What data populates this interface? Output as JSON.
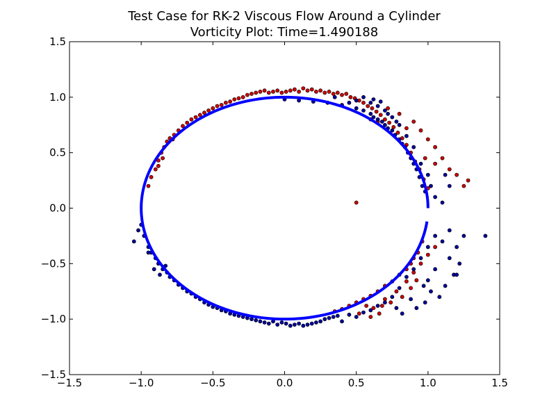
{
  "chart_data": {
    "type": "scatter",
    "title": "Test Case for RK-2 Viscous Flow Around a Cylinder",
    "subtitle": "Vorticity Plot: Time=1.490188",
    "xlabel": "",
    "ylabel": "",
    "xlim": [
      -1.5,
      1.5
    ],
    "ylim": [
      -1.5,
      1.5
    ],
    "xticks": [
      "−1.5",
      "−1.0",
      "−0.5",
      "0.0",
      "0.5",
      "1.0",
      "1.5"
    ],
    "yticks": [
      "−1.5",
      "−1.0",
      "−0.5",
      "0.0",
      "0.5",
      "1.0",
      "1.5"
    ],
    "grid": false,
    "colors": {
      "boundary": "#0000ff",
      "red_point_fill": "#cc0000",
      "blue_point_fill": "#000099",
      "point_edge": "#000000"
    },
    "boundary": {
      "shape": "circle",
      "center": [
        0,
        0
      ],
      "radius": 1.0,
      "gap_between_y": [
        -0.12,
        0.0
      ]
    },
    "series": [
      {
        "color": "red",
        "points": [
          [
            -0.95,
            0.2
          ],
          [
            -0.93,
            0.28
          ],
          [
            -0.9,
            0.35
          ],
          [
            -0.88,
            0.43
          ],
          [
            -0.86,
            0.5
          ],
          [
            -0.84,
            0.55
          ],
          [
            -0.82,
            0.6
          ],
          [
            -0.8,
            0.63
          ],
          [
            -0.77,
            0.66
          ],
          [
            -0.74,
            0.7
          ],
          [
            -0.71,
            0.74
          ],
          [
            -0.68,
            0.77
          ],
          [
            -0.65,
            0.8
          ],
          [
            -0.62,
            0.82
          ],
          [
            -0.59,
            0.84
          ],
          [
            -0.56,
            0.86
          ],
          [
            -0.53,
            0.88
          ],
          [
            -0.5,
            0.9
          ],
          [
            -0.47,
            0.92
          ],
          [
            -0.44,
            0.93
          ],
          [
            -0.41,
            0.95
          ],
          [
            -0.38,
            0.96
          ],
          [
            -0.35,
            0.98
          ],
          [
            -0.32,
            0.99
          ],
          [
            -0.29,
            1.0
          ],
          [
            -0.26,
            1.02
          ],
          [
            -0.23,
            1.03
          ],
          [
            -0.2,
            1.04
          ],
          [
            -0.17,
            1.05
          ],
          [
            -0.14,
            1.06
          ],
          [
            -0.11,
            1.04
          ],
          [
            -0.08,
            1.05
          ],
          [
            -0.05,
            1.06
          ],
          [
            -0.02,
            1.04
          ],
          [
            0.01,
            1.05
          ],
          [
            0.04,
            1.06
          ],
          [
            0.07,
            1.07
          ],
          [
            0.1,
            1.05
          ],
          [
            0.13,
            1.08
          ],
          [
            0.16,
            1.06
          ],
          [
            0.19,
            1.07
          ],
          [
            0.22,
            1.05
          ],
          [
            0.25,
            1.06
          ],
          [
            0.28,
            1.04
          ],
          [
            0.31,
            1.05
          ],
          [
            0.34,
            1.03
          ],
          [
            0.37,
            1.04
          ],
          [
            0.4,
            1.02
          ],
          [
            0.43,
            1.03
          ],
          [
            0.46,
            1.0
          ],
          [
            0.49,
            0.99
          ],
          [
            0.52,
            0.97
          ],
          [
            0.55,
            0.95
          ],
          [
            0.58,
            0.92
          ],
          [
            0.61,
            0.9
          ],
          [
            0.64,
            0.87
          ],
          [
            0.67,
            0.84
          ],
          [
            0.7,
            0.8
          ],
          [
            0.73,
            0.77
          ],
          [
            0.76,
            0.73
          ],
          [
            0.79,
            0.68
          ],
          [
            0.82,
            0.63
          ],
          [
            0.85,
            0.57
          ],
          [
            0.88,
            0.5
          ],
          [
            0.91,
            0.42
          ],
          [
            0.94,
            0.35
          ],
          [
            0.97,
            0.26
          ],
          [
            1.0,
            0.18
          ],
          [
            1.05,
            0.55
          ],
          [
            1.1,
            0.45
          ],
          [
            1.15,
            0.35
          ],
          [
            1.2,
            0.3
          ],
          [
            1.25,
            0.2
          ],
          [
            1.28,
            0.25
          ],
          [
            0.9,
            0.78
          ],
          [
            0.95,
            0.7
          ],
          [
            1.0,
            0.62
          ],
          [
            1.05,
            0.4
          ],
          [
            0.6,
            0.8
          ],
          [
            0.65,
            0.78
          ],
          [
            0.5,
            0.05
          ],
          [
            -0.85,
            0.45
          ],
          [
            -0.88,
            0.38
          ],
          [
            -0.78,
            0.62
          ],
          [
            0.72,
            0.9
          ],
          [
            0.8,
            0.85
          ],
          [
            0.85,
            0.72
          ],
          [
            0.98,
            0.45
          ],
          [
            0.5,
            -0.85
          ],
          [
            0.55,
            -0.82
          ],
          [
            0.6,
            -0.79
          ],
          [
            0.65,
            -0.75
          ],
          [
            0.7,
            -0.7
          ],
          [
            0.75,
            -0.66
          ],
          [
            0.8,
            -0.6
          ],
          [
            0.85,
            -0.55
          ],
          [
            0.88,
            -0.5
          ],
          [
            0.9,
            -0.45
          ],
          [
            0.93,
            -0.4
          ],
          [
            0.96,
            -0.3
          ],
          [
            0.45,
            -0.88
          ],
          [
            0.4,
            -0.91
          ],
          [
            0.35,
            -0.93
          ],
          [
            0.62,
            -0.9
          ],
          [
            0.7,
            -0.82
          ],
          [
            0.78,
            -0.75
          ],
          [
            0.85,
            -0.66
          ],
          [
            0.9,
            -0.58
          ],
          [
            0.95,
            -0.5
          ],
          [
            1.0,
            -0.42
          ],
          [
            1.05,
            -0.35
          ],
          [
            0.6,
            -0.98
          ],
          [
            0.68,
            -0.88
          ],
          [
            0.74,
            -0.85
          ],
          [
            0.82,
            -0.8
          ],
          [
            0.88,
            -0.72
          ],
          [
            0.52,
            -0.95
          ],
          [
            0.57,
            -0.88
          ],
          [
            0.66,
            -0.95
          ],
          [
            0.92,
            -0.65
          ]
        ]
      },
      {
        "color": "blue",
        "points": [
          [
            -1.05,
            -0.3
          ],
          [
            -1.0,
            -0.15
          ],
          [
            -0.98,
            -0.25
          ],
          [
            -0.95,
            -0.35
          ],
          [
            -0.93,
            -0.4
          ],
          [
            -0.9,
            -0.45
          ],
          [
            -0.88,
            -0.5
          ],
          [
            -0.85,
            -0.55
          ],
          [
            -0.82,
            -0.58
          ],
          [
            -0.8,
            -0.62
          ],
          [
            -0.77,
            -0.65
          ],
          [
            -0.74,
            -0.69
          ],
          [
            -0.71,
            -0.72
          ],
          [
            -0.68,
            -0.75
          ],
          [
            -0.65,
            -0.77
          ],
          [
            -0.62,
            -0.8
          ],
          [
            -0.59,
            -0.82
          ],
          [
            -0.56,
            -0.85
          ],
          [
            -0.53,
            -0.87
          ],
          [
            -0.5,
            -0.89
          ],
          [
            -0.47,
            -0.9
          ],
          [
            -0.44,
            -0.92
          ],
          [
            -0.41,
            -0.93
          ],
          [
            -0.38,
            -0.95
          ],
          [
            -0.35,
            -0.96
          ],
          [
            -0.32,
            -0.97
          ],
          [
            -0.29,
            -0.98
          ],
          [
            -0.26,
            -0.99
          ],
          [
            -0.23,
            -1.0
          ],
          [
            -0.2,
            -1.01
          ],
          [
            -0.17,
            -1.02
          ],
          [
            -0.14,
            -1.03
          ],
          [
            -0.11,
            -1.04
          ],
          [
            -0.08,
            -1.02
          ],
          [
            -0.05,
            -1.05
          ],
          [
            -0.02,
            -1.03
          ],
          [
            0.01,
            -1.04
          ],
          [
            0.04,
            -1.06
          ],
          [
            0.07,
            -1.05
          ],
          [
            0.1,
            -1.04
          ],
          [
            0.13,
            -1.06
          ],
          [
            0.16,
            -1.05
          ],
          [
            0.19,
            -1.04
          ],
          [
            0.22,
            -1.03
          ],
          [
            0.25,
            -1.02
          ],
          [
            0.28,
            -1.0
          ],
          [
            0.31,
            -0.99
          ],
          [
            0.34,
            -0.98
          ],
          [
            0.37,
            -0.97
          ],
          [
            0.4,
            -1.02
          ],
          [
            0.45,
            -0.96
          ],
          [
            0.5,
            -0.98
          ],
          [
            0.55,
            -0.94
          ],
          [
            0.6,
            -0.92
          ],
          [
            0.65,
            -0.88
          ],
          [
            0.7,
            -0.85
          ],
          [
            0.75,
            -0.8
          ],
          [
            0.8,
            -0.72
          ],
          [
            0.85,
            -0.62
          ],
          [
            0.9,
            -0.55
          ],
          [
            0.95,
            -0.45
          ],
          [
            1.0,
            -0.35
          ],
          [
            1.05,
            -0.25
          ],
          [
            1.1,
            -0.3
          ],
          [
            1.15,
            -0.2
          ],
          [
            1.2,
            -0.35
          ],
          [
            1.25,
            -0.25
          ],
          [
            1.4,
            -0.25
          ],
          [
            1.22,
            -0.5
          ],
          [
            1.18,
            -0.6
          ],
          [
            1.12,
            -0.7
          ],
          [
            1.08,
            -0.8
          ],
          [
            1.02,
            -0.75
          ],
          [
            0.98,
            -0.85
          ],
          [
            0.92,
            -0.9
          ],
          [
            0.88,
            -0.82
          ],
          [
            0.82,
            -0.95
          ],
          [
            0.78,
            -0.9
          ],
          [
            1.2,
            -0.6
          ],
          [
            1.15,
            -0.45
          ],
          [
            1.05,
            -0.55
          ],
          [
            1.0,
            -0.65
          ],
          [
            0.97,
            -0.7
          ],
          [
            -0.95,
            -0.4
          ],
          [
            -1.02,
            -0.2
          ],
          [
            -0.87,
            -0.6
          ],
          [
            -0.83,
            -0.52
          ],
          [
            -0.91,
            -0.55
          ],
          [
            0.0,
            0.98
          ],
          [
            0.1,
            0.97
          ],
          [
            0.2,
            0.96
          ],
          [
            0.3,
            0.95
          ],
          [
            0.4,
            0.93
          ],
          [
            0.5,
            0.9
          ],
          [
            0.55,
            0.88
          ],
          [
            0.6,
            0.85
          ],
          [
            0.62,
            0.82
          ],
          [
            0.65,
            0.8
          ],
          [
            0.68,
            0.78
          ],
          [
            0.7,
            0.75
          ],
          [
            0.72,
            0.72
          ],
          [
            0.75,
            0.7
          ],
          [
            0.77,
            0.66
          ],
          [
            0.8,
            0.62
          ],
          [
            0.82,
            0.58
          ],
          [
            0.84,
            0.55
          ],
          [
            0.86,
            0.5
          ],
          [
            0.88,
            0.45
          ],
          [
            0.9,
            0.4
          ],
          [
            0.92,
            0.35
          ],
          [
            0.94,
            0.28
          ],
          [
            0.96,
            0.2
          ],
          [
            0.98,
            0.15
          ],
          [
            0.6,
            0.95
          ],
          [
            0.65,
            0.92
          ],
          [
            0.7,
            0.88
          ],
          [
            0.72,
            0.85
          ],
          [
            0.75,
            0.82
          ],
          [
            0.78,
            0.78
          ],
          [
            0.8,
            0.75
          ],
          [
            0.85,
            0.65
          ],
          [
            0.9,
            0.55
          ],
          [
            0.95,
            0.4
          ],
          [
            1.0,
            0.3
          ],
          [
            1.02,
            0.2
          ],
          [
            1.05,
            0.1
          ],
          [
            1.1,
            0.05
          ],
          [
            1.15,
            0.2
          ],
          [
            1.12,
            0.3
          ],
          [
            0.45,
            0.95
          ],
          [
            0.5,
            0.97
          ],
          [
            0.35,
            1.0
          ],
          [
            0.55,
            1.0
          ],
          [
            0.62,
            0.98
          ],
          [
            0.67,
            0.96
          ]
        ]
      }
    ]
  }
}
